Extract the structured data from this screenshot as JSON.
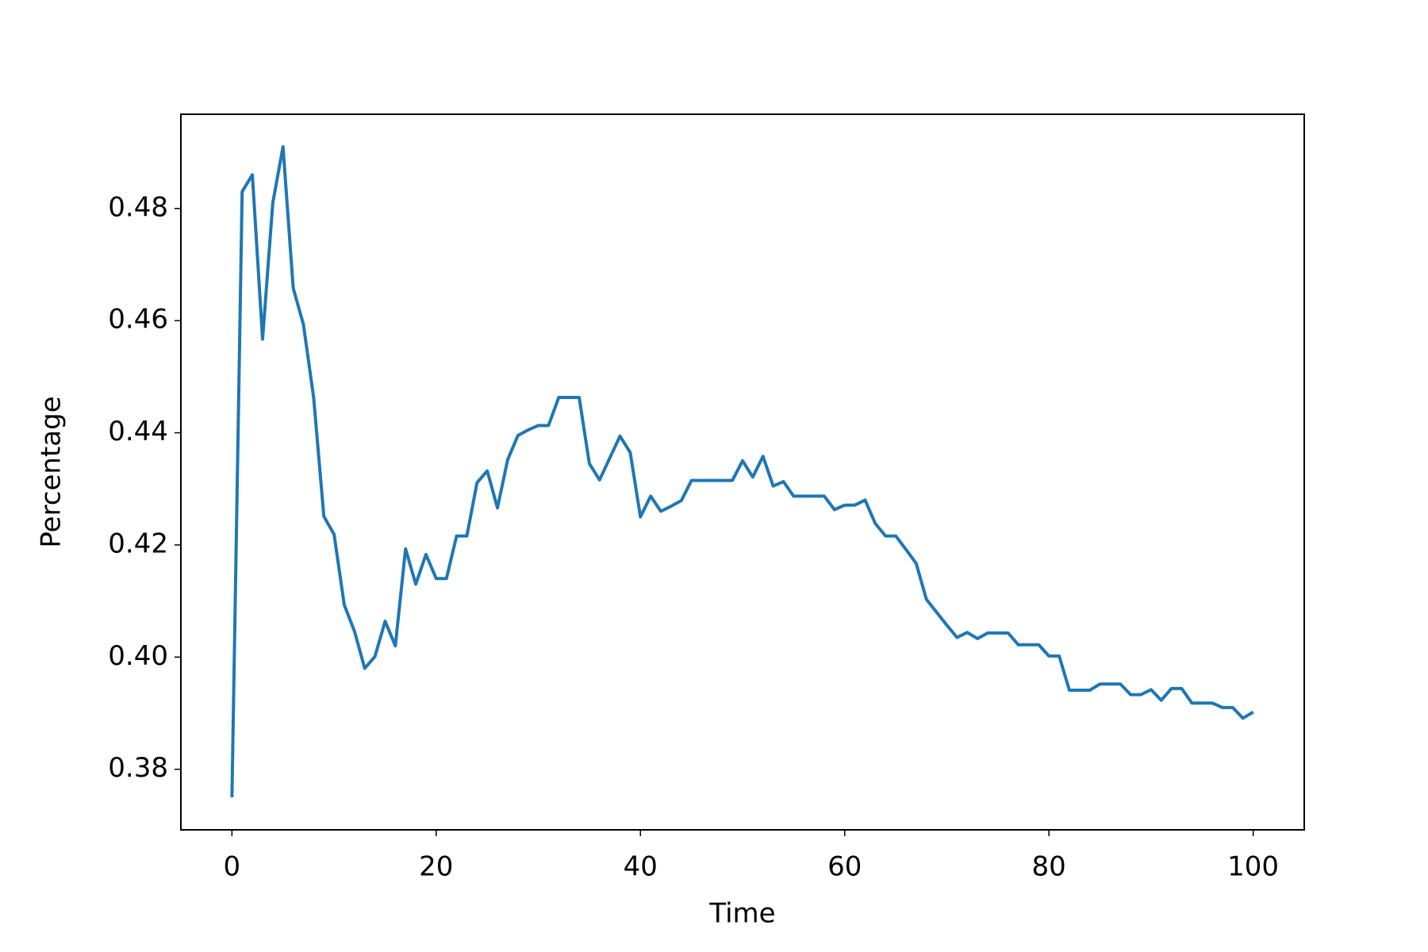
{
  "chart_data": {
    "type": "line",
    "xlabel": "Time",
    "ylabel": "Percentage",
    "x": [
      0,
      1,
      2,
      3,
      4,
      5,
      6,
      7,
      8,
      9,
      10,
      11,
      12,
      13,
      14,
      15,
      16,
      17,
      18,
      19,
      20,
      21,
      22,
      23,
      24,
      25,
      26,
      27,
      28,
      29,
      30,
      31,
      32,
      33,
      34,
      35,
      36,
      37,
      38,
      39,
      40,
      41,
      42,
      43,
      44,
      45,
      46,
      47,
      48,
      49,
      50,
      51,
      52,
      53,
      54,
      55,
      56,
      57,
      58,
      59,
      60,
      61,
      62,
      63,
      64,
      65,
      66,
      67,
      68,
      69,
      70,
      71,
      72,
      73,
      74,
      75,
      76,
      77,
      78,
      79,
      80,
      81,
      82,
      83,
      84,
      85,
      86,
      87,
      88,
      89,
      90,
      91,
      92,
      93,
      94,
      95,
      96,
      97,
      98,
      99,
      100
    ],
    "series": [
      {
        "color": "#1f77b4",
        "values": [
          0.375,
          0.483,
          0.486,
          0.4567,
          0.481,
          0.491,
          0.4658,
          0.4593,
          0.4463,
          0.4251,
          0.4219,
          0.4093,
          0.4046,
          0.398,
          0.4001,
          0.4064,
          0.402,
          0.4193,
          0.413,
          0.4183,
          0.414,
          0.414,
          0.4216,
          0.4216,
          0.4311,
          0.4332,
          0.4266,
          0.4352,
          0.4395,
          0.4405,
          0.4413,
          0.4413,
          0.4463,
          0.4463,
          0.4463,
          0.4345,
          0.4316,
          0.4355,
          0.4394,
          0.4365,
          0.425,
          0.4287,
          0.426,
          0.4269,
          0.4279,
          0.4315,
          0.4315,
          0.4315,
          0.4315,
          0.4315,
          0.435,
          0.4321,
          0.4358,
          0.4305,
          0.4313,
          0.4287,
          0.4287,
          0.4287,
          0.4287,
          0.4263,
          0.4271,
          0.4271,
          0.428,
          0.4238,
          0.4216,
          0.4216,
          0.4192,
          0.4167,
          0.4103,
          0.408,
          0.4057,
          0.4035,
          0.4044,
          0.4033,
          0.4043,
          0.4043,
          0.4043,
          0.4022,
          0.4022,
          0.4022,
          0.4002,
          0.4002,
          0.3941,
          0.3941,
          0.3941,
          0.3952,
          0.3952,
          0.3952,
          0.3933,
          0.3933,
          0.3942,
          0.3923,
          0.3944,
          0.3944,
          0.3918,
          0.3918,
          0.3918,
          0.391,
          0.391,
          0.3891,
          0.3902
        ]
      }
    ],
    "xlim": [
      -5,
      105
    ],
    "xticks": [
      0,
      20,
      40,
      60,
      80,
      100
    ],
    "ylim": [
      0.3692,
      0.4968
    ],
    "yticks": [
      0.38,
      {
        "value": 0.4,
        "label": "0.40"
      },
      0.42,
      0.44,
      0.46,
      0.48
    ],
    "grid": false
  }
}
